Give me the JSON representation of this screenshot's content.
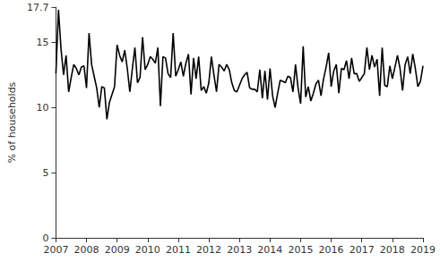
{
  "chart_data": {
    "type": "line",
    "y_label": "% of households",
    "color": "#000000",
    "grid": false,
    "categories": [
      "2007",
      null,
      null,
      null,
      null,
      null,
      null,
      null,
      null,
      null,
      null,
      null,
      "2008",
      null,
      null,
      null,
      null,
      null,
      null,
      null,
      null,
      null,
      null,
      null,
      "2009",
      null,
      null,
      null,
      null,
      null,
      null,
      null,
      null,
      null,
      null,
      null,
      "2010",
      null,
      null,
      null,
      null,
      null,
      null,
      null,
      null,
      null,
      null,
      null,
      "2011",
      null,
      null,
      null,
      null,
      null,
      null,
      null,
      null,
      null,
      null,
      null,
      "2012",
      null,
      null,
      null,
      null,
      null,
      null,
      null,
      null,
      null,
      null,
      null,
      "2013",
      null,
      null,
      null,
      null,
      null,
      null,
      null,
      null,
      null,
      null,
      null,
      "2014",
      null,
      null,
      null,
      null,
      null,
      null,
      null,
      null,
      null,
      null,
      null,
      "2015",
      null,
      null,
      null,
      null,
      null,
      null,
      null,
      null,
      null,
      null,
      null,
      "2016",
      null,
      null,
      null,
      null,
      null,
      null,
      null,
      null,
      null,
      null,
      null,
      "2017",
      null,
      null,
      null,
      null,
      null,
      null,
      null,
      null,
      null,
      null,
      null,
      "2018",
      null,
      null,
      null,
      null,
      null,
      null,
      null,
      null,
      null,
      null,
      null,
      "2019"
    ],
    "values": [
      12.6,
      17.5,
      14.5,
      12.5,
      14.0,
      11.2,
      12.3,
      13.3,
      13.0,
      12.5,
      13.1,
      13.2,
      11.5,
      15.7,
      13.3,
      12.4,
      11.5,
      10.0,
      11.6,
      11.5,
      9.1,
      10.4,
      11.0,
      11.6,
      14.8,
      14.0,
      13.5,
      14.4,
      13.0,
      11.2,
      13.0,
      14.6,
      11.9,
      12.3,
      15.4,
      12.9,
      13.3,
      13.9,
      13.7,
      13.4,
      14.6,
      10.1,
      13.9,
      13.8,
      12.6,
      12.3,
      15.7,
      12.4,
      12.9,
      13.5,
      12.4,
      13.4,
      14.1,
      11.0,
      13.8,
      12.2,
      13.9,
      11.3,
      11.6,
      11.1,
      11.9,
      13.9,
      12.5,
      11.2,
      13.3,
      13.1,
      12.8,
      13.3,
      12.9,
      11.9,
      11.3,
      11.2,
      11.7,
      12.2,
      12.5,
      12.7,
      11.5,
      11.4,
      11.4,
      11.2,
      12.9,
      10.7,
      12.8,
      10.6,
      13.0,
      10.9,
      10.0,
      11.1,
      12.1,
      12.0,
      11.9,
      12.4,
      12.3,
      11.2,
      13.3,
      11.5,
      10.3,
      14.7,
      10.8,
      11.6,
      10.5,
      11.1,
      11.8,
      12.1,
      10.9,
      12.2,
      13.1,
      14.2,
      11.6,
      12.8,
      13.3,
      11.1,
      13.0,
      12.9,
      13.6,
      12.2,
      13.8,
      12.6,
      12.6,
      12.0,
      12.3,
      12.6,
      14.6,
      12.9,
      14.0,
      13.1,
      13.7,
      10.9,
      14.6,
      11.7,
      11.6,
      13.2,
      12.2,
      13.1,
      14.0,
      13.0,
      11.3,
      13.3,
      13.9,
      12.6,
      14.1,
      13.0,
      11.6,
      12.0,
      13.2
    ],
    "ylim": [
      0,
      17.7
    ],
    "yticks": [
      0,
      5,
      10,
      15
    ]
  }
}
